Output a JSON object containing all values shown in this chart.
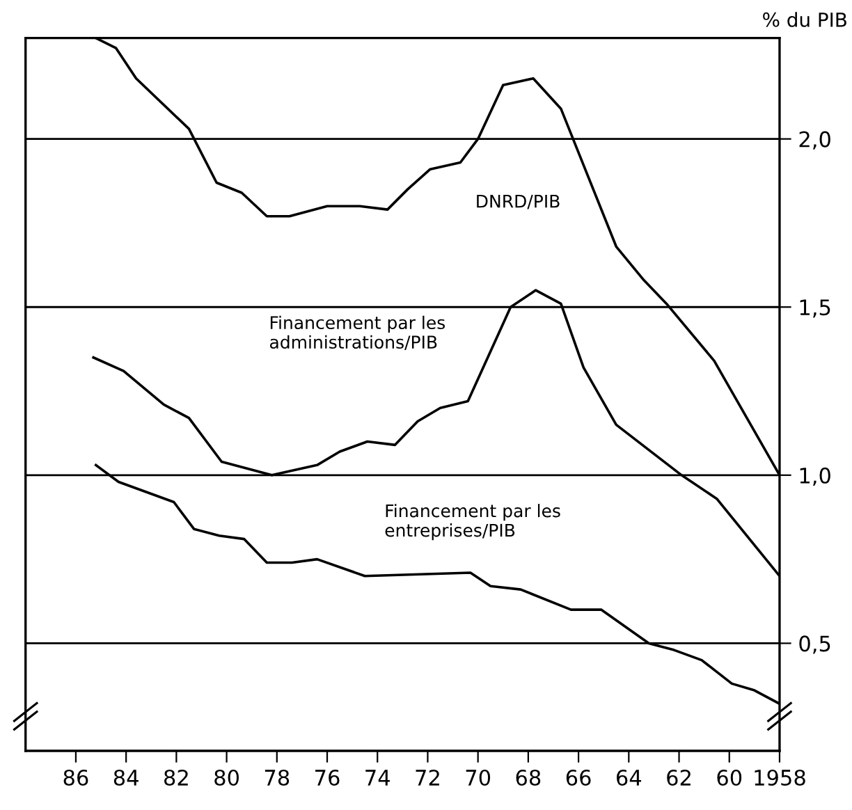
{
  "chart_data": {
    "type": "line",
    "ylabel": "% du PIB",
    "xlim": [
      1988,
      1958
    ],
    "ylim": [
      0.18,
      2.3
    ],
    "grid": "y",
    "legend": false,
    "marker": "none",
    "line_style": "solid",
    "xticks": [
      {
        "value": 1958,
        "label": "1958"
      },
      {
        "value": 1960,
        "label": "60"
      },
      {
        "value": 1962,
        "label": "62"
      },
      {
        "value": 1964,
        "label": "64"
      },
      {
        "value": 1966,
        "label": "66"
      },
      {
        "value": 1968,
        "label": "68"
      },
      {
        "value": 1970,
        "label": "70"
      },
      {
        "value": 1972,
        "label": "72"
      },
      {
        "value": 1974,
        "label": "74"
      },
      {
        "value": 1976,
        "label": "76"
      },
      {
        "value": 1978,
        "label": "78"
      },
      {
        "value": 1980,
        "label": "80"
      },
      {
        "value": 1982,
        "label": "82"
      },
      {
        "value": 1984,
        "label": "84"
      },
      {
        "value": 1986,
        "label": "86"
      }
    ],
    "yticks": [
      {
        "value": 0.5,
        "label": "0,5"
      },
      {
        "value": 1.0,
        "label": "1,0"
      },
      {
        "value": 1.5,
        "label": "1,5"
      },
      {
        "value": 2.0,
        "label": "2,0"
      }
    ],
    "series": [
      {
        "name": "DNRD/PIB",
        "color": "#000000",
        "x": [
          1985.2,
          1984.4,
          1983.6,
          1981.5,
          1980.4,
          1979.4,
          1978.4,
          1977.5,
          1976.0,
          1974.7,
          1973.6,
          1972.8,
          1971.9,
          1970.7,
          1970.0,
          1969.0,
          1967.8,
          1966.7,
          1964.5,
          1963.4,
          1962.5,
          1960.6,
          1958
        ],
        "values": [
          2.3,
          2.27,
          2.18,
          2.03,
          1.87,
          1.84,
          1.77,
          1.77,
          1.8,
          1.8,
          1.79,
          1.85,
          1.91,
          1.93,
          2.0,
          2.16,
          2.18,
          2.09,
          1.68,
          1.58,
          1.51,
          1.34,
          1.0
        ]
      },
      {
        "name": "Financement par les\nadministrations/PIB",
        "color": "#000000",
        "x": [
          1985.3,
          1984.1,
          1982.5,
          1981.5,
          1980.2,
          1978.2,
          1976.4,
          1975.5,
          1974.4,
          1973.3,
          1972.4,
          1971.5,
          1970.4,
          1968.7,
          1967.7,
          1966.7,
          1965.8,
          1964.5,
          1961.9,
          1960.5,
          1958
        ],
        "values": [
          1.35,
          1.31,
          1.21,
          1.17,
          1.04,
          1.0,
          1.03,
          1.07,
          1.1,
          1.09,
          1.16,
          1.2,
          1.22,
          1.5,
          1.55,
          1.51,
          1.32,
          1.15,
          1.0,
          0.93,
          0.7
        ]
      },
      {
        "name": "Financement par les\nentreprises/PIB",
        "color": "#000000",
        "x": [
          1985.2,
          1984.3,
          1982.1,
          1981.3,
          1980.3,
          1979.3,
          1978.4,
          1977.4,
          1976.4,
          1974.5,
          1970.3,
          1969.5,
          1968.3,
          1966.3,
          1965.1,
          1963.2,
          1962.2,
          1961.1,
          1959.9,
          1959.0,
          1958
        ],
        "values": [
          1.03,
          0.98,
          0.92,
          0.84,
          0.82,
          0.81,
          0.74,
          0.74,
          0.75,
          0.7,
          0.71,
          0.67,
          0.66,
          0.6,
          0.6,
          0.5,
          0.48,
          0.45,
          0.38,
          0.36,
          0.32
        ]
      }
    ]
  }
}
